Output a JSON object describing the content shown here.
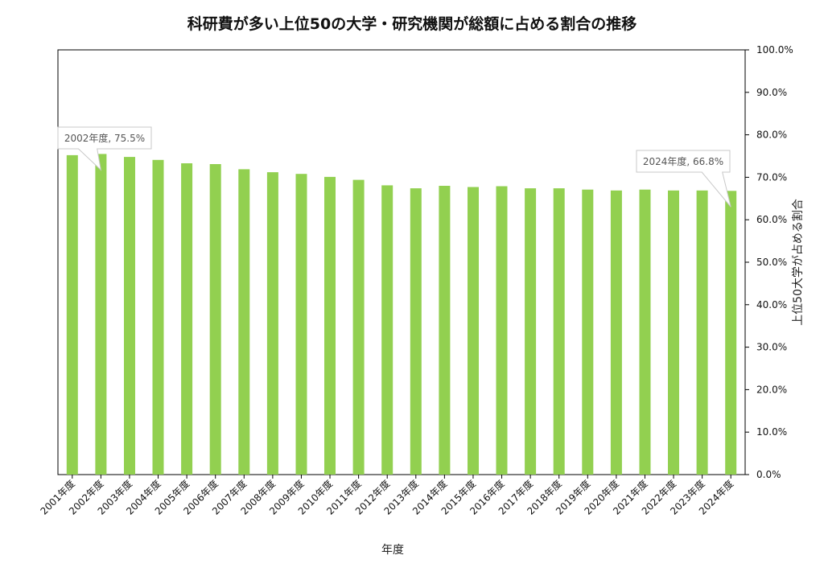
{
  "chart_data": {
    "type": "bar",
    "title": "科研費が多い上位50の大学・研究機関が総額に占める割合の推移",
    "xlabel": "年度",
    "ylabel": "上位50大学が占める割合",
    "ylim": [
      0,
      100
    ],
    "y_axis_position": "right",
    "y_ticks": [
      "0.0%",
      "10.0%",
      "20.0%",
      "30.0%",
      "40.0%",
      "50.0%",
      "60.0%",
      "70.0%",
      "80.0%",
      "90.0%",
      "100.0%"
    ],
    "grid": false,
    "bar_color": "#92d050",
    "categories": [
      "2001年度",
      "2002年度",
      "2003年度",
      "2004年度",
      "2005年度",
      "2006年度",
      "2007年度",
      "2008年度",
      "2009年度",
      "2010年度",
      "2011年度",
      "2012年度",
      "2013年度",
      "2014年度",
      "2015年度",
      "2016年度",
      "2017年度",
      "2018年度",
      "2019年度",
      "2020年度",
      "2021年度",
      "2022年度",
      "2023年度",
      "2024年度"
    ],
    "values": [
      75.2,
      75.5,
      74.8,
      74.1,
      73.3,
      73.1,
      71.9,
      71.2,
      70.8,
      70.1,
      69.4,
      68.1,
      67.4,
      68.0,
      67.7,
      67.9,
      67.4,
      67.4,
      67.1,
      66.9,
      67.1,
      66.9,
      66.9,
      66.8
    ],
    "annotations": [
      {
        "category": "2002年度",
        "text": "2002年度, 75.5%"
      },
      {
        "category": "2024年度",
        "text": "2024年度, 66.8%"
      }
    ]
  }
}
